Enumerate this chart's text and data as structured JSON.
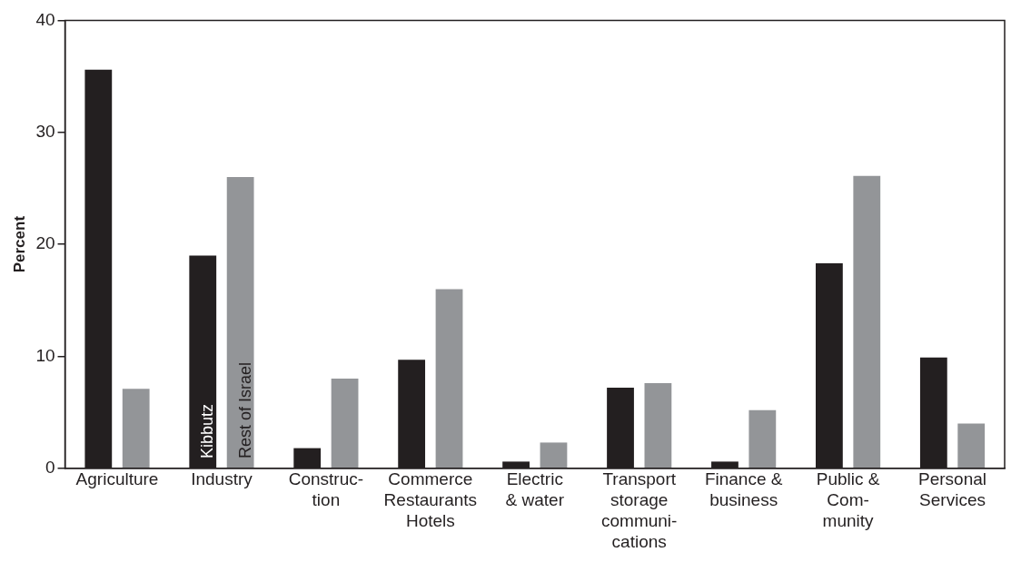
{
  "chart_data": {
    "type": "bar",
    "ylabel": "Percent",
    "categories": [
      "Agriculture",
      "Industry",
      "Construc-\ntion",
      "Commerce\nRestaurants\nHotels",
      "Electric\n& water",
      "Transport\nstorage\ncommuni-\ncations",
      "Finance &\nbusiness",
      "Public &\nCom-\nmunity",
      "Personal\nServices"
    ],
    "series": [
      {
        "name": "Kibbutz",
        "color": "#231f20",
        "values": [
          35.6,
          19,
          1.8,
          9.7,
          0.6,
          7.2,
          0.6,
          18.3,
          9.9
        ]
      },
      {
        "name": "Rest of Israel",
        "color": "#939598",
        "values": [
          7.1,
          26,
          8,
          16,
          2.3,
          7.6,
          5.2,
          26.1,
          4
        ]
      }
    ],
    "ylim": [
      0,
      40
    ],
    "yticks": [
      0,
      10,
      20,
      30,
      40
    ],
    "grid": false,
    "legend": false
  }
}
